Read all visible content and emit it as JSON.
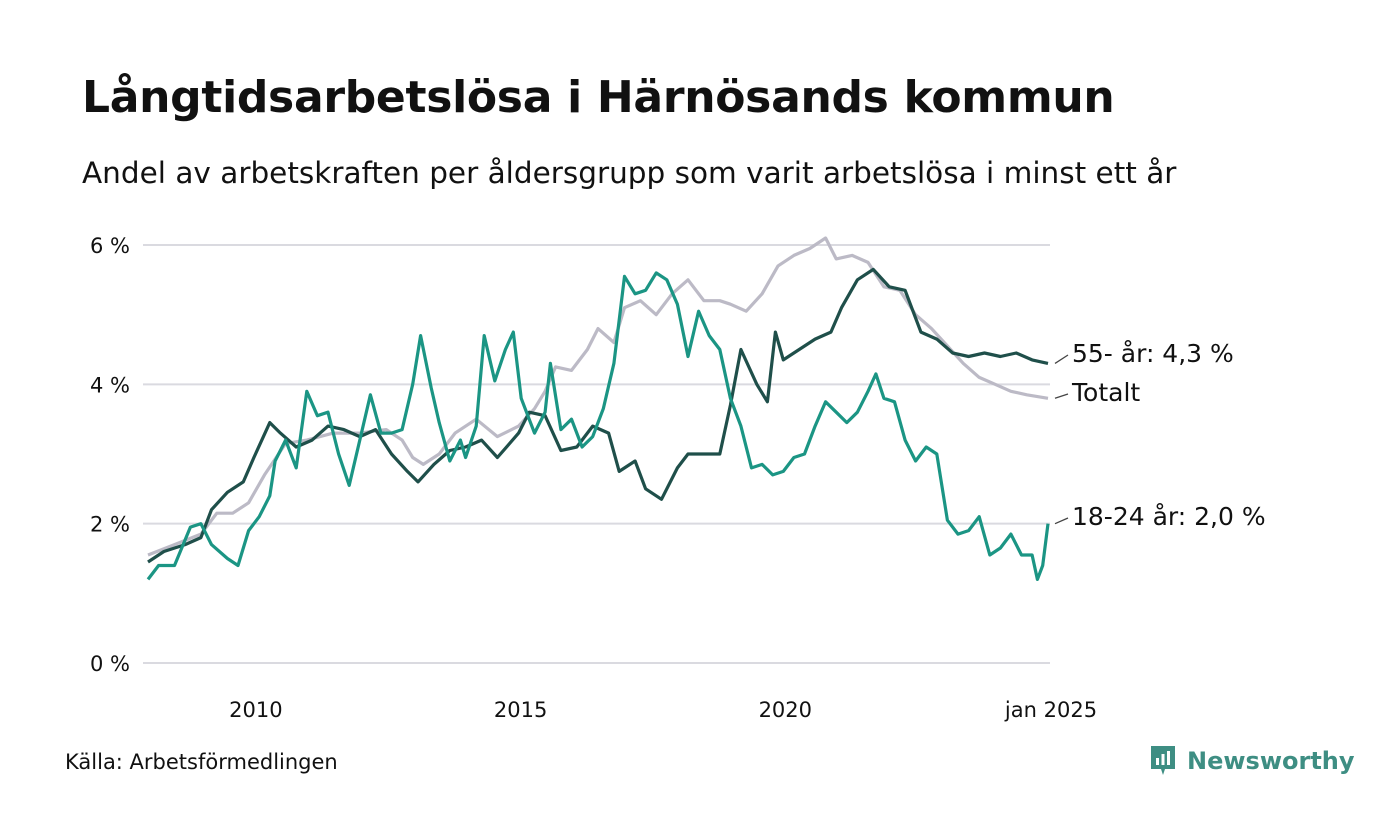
{
  "title": "Långtidsarbetslösa i Härnösands kommun",
  "subtitle": "Andel av arbetskraften per åldersgrupp som varit arbetslösa i minst ett år",
  "source": "Källa: Arbetsförmedlingen",
  "brand": "Newsworthy",
  "chart_data": {
    "type": "line",
    "x_start": 2008.0,
    "x_end": 2025.0,
    "x_tick_labels": [
      "2010",
      "2015",
      "2020",
      "jan 2025"
    ],
    "y_tick_labels": [
      "0 %",
      "2 %",
      "4 %",
      "6 %"
    ],
    "ylim": [
      0,
      6
    ],
    "grid": true,
    "series": [
      {
        "name": "Totalt",
        "end_label": "Totalt",
        "color": "#bcbac6",
        "points": [
          [
            2008.0,
            1.55
          ],
          [
            2008.5,
            1.7
          ],
          [
            2009.0,
            1.85
          ],
          [
            2009.3,
            2.15
          ],
          [
            2009.6,
            2.15
          ],
          [
            2009.9,
            2.3
          ],
          [
            2010.2,
            2.7
          ],
          [
            2010.6,
            3.15
          ],
          [
            2011.0,
            3.2
          ],
          [
            2011.5,
            3.3
          ],
          [
            2012.0,
            3.3
          ],
          [
            2012.5,
            3.35
          ],
          [
            2012.8,
            3.2
          ],
          [
            2013.0,
            2.95
          ],
          [
            2013.2,
            2.85
          ],
          [
            2013.5,
            3.0
          ],
          [
            2013.8,
            3.3
          ],
          [
            2014.2,
            3.5
          ],
          [
            2014.6,
            3.25
          ],
          [
            2015.0,
            3.4
          ],
          [
            2015.3,
            3.65
          ],
          [
            2015.5,
            3.9
          ],
          [
            2015.7,
            4.25
          ],
          [
            2016.0,
            4.2
          ],
          [
            2016.3,
            4.5
          ],
          [
            2016.5,
            4.8
          ],
          [
            2016.8,
            4.6
          ],
          [
            2017.0,
            5.1
          ],
          [
            2017.3,
            5.2
          ],
          [
            2017.6,
            5.0
          ],
          [
            2017.9,
            5.3
          ],
          [
            2018.2,
            5.5
          ],
          [
            2018.5,
            5.2
          ],
          [
            2018.8,
            5.2
          ],
          [
            2019.0,
            5.15
          ],
          [
            2019.3,
            5.05
          ],
          [
            2019.6,
            5.3
          ],
          [
            2019.9,
            5.7
          ],
          [
            2020.2,
            5.85
          ],
          [
            2020.5,
            5.95
          ],
          [
            2020.8,
            6.1
          ],
          [
            2021.0,
            5.8
          ],
          [
            2021.3,
            5.85
          ],
          [
            2021.6,
            5.75
          ],
          [
            2021.9,
            5.4
          ],
          [
            2022.2,
            5.35
          ],
          [
            2022.5,
            5.0
          ],
          [
            2022.8,
            4.8
          ],
          [
            2023.1,
            4.55
          ],
          [
            2023.4,
            4.3
          ],
          [
            2023.7,
            4.1
          ],
          [
            2024.0,
            4.0
          ],
          [
            2024.3,
            3.9
          ],
          [
            2024.6,
            3.85
          ],
          [
            2025.0,
            3.8
          ]
        ]
      },
      {
        "name": "55- år",
        "end_label": "55- år: 4,3 %",
        "color": "#1f4f4a",
        "points": [
          [
            2008.0,
            1.45
          ],
          [
            2008.3,
            1.6
          ],
          [
            2008.7,
            1.7
          ],
          [
            2009.0,
            1.8
          ],
          [
            2009.2,
            2.2
          ],
          [
            2009.5,
            2.45
          ],
          [
            2009.8,
            2.6
          ],
          [
            2010.0,
            2.95
          ],
          [
            2010.3,
            3.45
          ],
          [
            2010.5,
            3.3
          ],
          [
            2010.8,
            3.1
          ],
          [
            2011.1,
            3.2
          ],
          [
            2011.4,
            3.4
          ],
          [
            2011.7,
            3.35
          ],
          [
            2012.0,
            3.25
          ],
          [
            2012.3,
            3.35
          ],
          [
            2012.6,
            3.0
          ],
          [
            2012.9,
            2.75
          ],
          [
            2013.1,
            2.6
          ],
          [
            2013.4,
            2.85
          ],
          [
            2013.7,
            3.05
          ],
          [
            2014.0,
            3.1
          ],
          [
            2014.3,
            3.2
          ],
          [
            2014.6,
            2.95
          ],
          [
            2015.0,
            3.3
          ],
          [
            2015.2,
            3.6
          ],
          [
            2015.5,
            3.55
          ],
          [
            2015.8,
            3.05
          ],
          [
            2016.1,
            3.1
          ],
          [
            2016.4,
            3.4
          ],
          [
            2016.7,
            3.3
          ],
          [
            2016.9,
            2.75
          ],
          [
            2017.2,
            2.9
          ],
          [
            2017.4,
            2.5
          ],
          [
            2017.7,
            2.35
          ],
          [
            2018.0,
            2.8
          ],
          [
            2018.2,
            3.0
          ],
          [
            2018.5,
            3.0
          ],
          [
            2018.8,
            3.0
          ],
          [
            2019.0,
            3.7
          ],
          [
            2019.2,
            4.5
          ],
          [
            2019.5,
            4.0
          ],
          [
            2019.7,
            3.75
          ],
          [
            2019.85,
            4.75
          ],
          [
            2020.0,
            4.35
          ],
          [
            2020.3,
            4.5
          ],
          [
            2020.6,
            4.65
          ],
          [
            2020.9,
            4.75
          ],
          [
            2021.1,
            5.1
          ],
          [
            2021.4,
            5.5
          ],
          [
            2021.7,
            5.65
          ],
          [
            2022.0,
            5.4
          ],
          [
            2022.3,
            5.35
          ],
          [
            2022.6,
            4.75
          ],
          [
            2022.9,
            4.65
          ],
          [
            2023.2,
            4.45
          ],
          [
            2023.5,
            4.4
          ],
          [
            2023.8,
            4.45
          ],
          [
            2024.1,
            4.4
          ],
          [
            2024.4,
            4.45
          ],
          [
            2024.7,
            4.35
          ],
          [
            2025.0,
            4.3
          ]
        ]
      },
      {
        "name": "18-24 år",
        "end_label": "18-24 år: 2,0 %",
        "color": "#1b9584",
        "points": [
          [
            2008.0,
            1.2
          ],
          [
            2008.2,
            1.4
          ],
          [
            2008.5,
            1.4
          ],
          [
            2008.8,
            1.95
          ],
          [
            2009.0,
            2.0
          ],
          [
            2009.2,
            1.7
          ],
          [
            2009.5,
            1.5
          ],
          [
            2009.7,
            1.4
          ],
          [
            2009.9,
            1.9
          ],
          [
            2010.1,
            2.1
          ],
          [
            2010.3,
            2.4
          ],
          [
            2010.4,
            2.9
          ],
          [
            2010.6,
            3.2
          ],
          [
            2010.8,
            2.8
          ],
          [
            2011.0,
            3.9
          ],
          [
            2011.2,
            3.55
          ],
          [
            2011.4,
            3.6
          ],
          [
            2011.6,
            3.0
          ],
          [
            2011.8,
            2.55
          ],
          [
            2012.0,
            3.2
          ],
          [
            2012.2,
            3.85
          ],
          [
            2012.4,
            3.3
          ],
          [
            2012.6,
            3.3
          ],
          [
            2012.8,
            3.35
          ],
          [
            2013.0,
            4.0
          ],
          [
            2013.15,
            4.7
          ],
          [
            2013.35,
            3.95
          ],
          [
            2013.5,
            3.45
          ],
          [
            2013.7,
            2.9
          ],
          [
            2013.9,
            3.2
          ],
          [
            2014.0,
            2.95
          ],
          [
            2014.2,
            3.4
          ],
          [
            2014.35,
            4.7
          ],
          [
            2014.55,
            4.05
          ],
          [
            2014.75,
            4.5
          ],
          [
            2014.9,
            4.75
          ],
          [
            2015.05,
            3.8
          ],
          [
            2015.3,
            3.3
          ],
          [
            2015.5,
            3.6
          ],
          [
            2015.6,
            4.3
          ],
          [
            2015.8,
            3.35
          ],
          [
            2016.0,
            3.5
          ],
          [
            2016.2,
            3.1
          ],
          [
            2016.4,
            3.25
          ],
          [
            2016.6,
            3.65
          ],
          [
            2016.8,
            4.3
          ],
          [
            2017.0,
            5.55
          ],
          [
            2017.2,
            5.3
          ],
          [
            2017.4,
            5.35
          ],
          [
            2017.6,
            5.6
          ],
          [
            2017.8,
            5.5
          ],
          [
            2018.0,
            5.15
          ],
          [
            2018.2,
            4.4
          ],
          [
            2018.4,
            5.05
          ],
          [
            2018.6,
            4.7
          ],
          [
            2018.8,
            4.5
          ],
          [
            2019.0,
            3.8
          ],
          [
            2019.2,
            3.4
          ],
          [
            2019.4,
            2.8
          ],
          [
            2019.6,
            2.85
          ],
          [
            2019.8,
            2.7
          ],
          [
            2020.0,
            2.75
          ],
          [
            2020.2,
            2.95
          ],
          [
            2020.4,
            3.0
          ],
          [
            2020.6,
            3.4
          ],
          [
            2020.8,
            3.75
          ],
          [
            2021.0,
            3.6
          ],
          [
            2021.2,
            3.45
          ],
          [
            2021.4,
            3.6
          ],
          [
            2021.6,
            3.9
          ],
          [
            2021.75,
            4.15
          ],
          [
            2021.9,
            3.8
          ],
          [
            2022.1,
            3.75
          ],
          [
            2022.3,
            3.2
          ],
          [
            2022.5,
            2.9
          ],
          [
            2022.7,
            3.1
          ],
          [
            2022.9,
            3.0
          ],
          [
            2023.1,
            2.05
          ],
          [
            2023.3,
            1.85
          ],
          [
            2023.5,
            1.9
          ],
          [
            2023.7,
            2.1
          ],
          [
            2023.9,
            1.55
          ],
          [
            2024.1,
            1.65
          ],
          [
            2024.3,
            1.85
          ],
          [
            2024.5,
            1.55
          ],
          [
            2024.7,
            1.55
          ],
          [
            2024.8,
            1.2
          ],
          [
            2024.9,
            1.4
          ],
          [
            2025.0,
            2.0
          ]
        ]
      }
    ]
  }
}
